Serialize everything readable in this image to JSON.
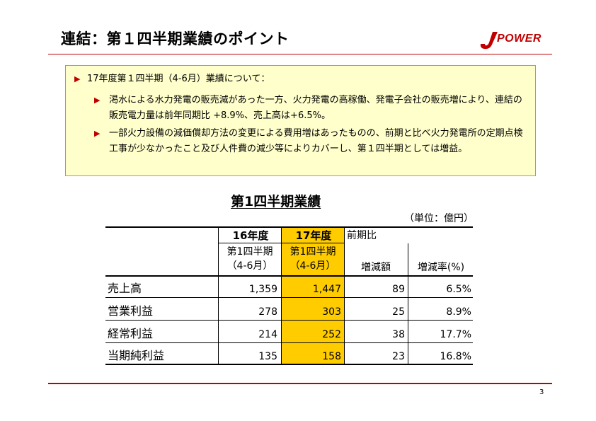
{
  "header": {
    "title": "連結：第１四半期業績のポイント",
    "logo_text": "POWER",
    "accent_color": "#c00000"
  },
  "summary": {
    "heading": "17年度第１四半期（4-6月）業績について：",
    "points": [
      "渇水による水力発電の販売減があった一方、火力発電の高稼働、発電子会社の販売増により、連結の販売電力量は前年同期比 +8.9%、売上高は+6.5%。",
      "一部火力設備の減価償却方法の変更による費用増はあったものの、前期と比べ火力発電所の定期点検工事が少なかったこと及び人件費の減少等によりカバーし、第１四半期としては増益。"
    ]
  },
  "table": {
    "title": "第1四半期業績",
    "unit": "（単位：億円）",
    "col_year_prev": "16年度",
    "col_year_curr": "17年度",
    "col_compare": "前期比",
    "col_q_prev": [
      "第1四半期",
      "（4-6月）"
    ],
    "col_q_curr": [
      "第1四半期",
      "（4-6月）"
    ],
    "col_diff": "増減額",
    "col_rate": "増減率(%)",
    "highlight_color": "#ffcc00",
    "rows": [
      {
        "label": "売上高",
        "prev": "1,359",
        "curr": "1,447",
        "diff": "89",
        "rate": "6.5%"
      },
      {
        "label": "営業利益",
        "prev": "278",
        "curr": "303",
        "diff": "25",
        "rate": "8.9%"
      },
      {
        "label": "経常利益",
        "prev": "214",
        "curr": "252",
        "diff": "38",
        "rate": "17.7%"
      },
      {
        "label": "当期純利益",
        "prev": "135",
        "curr": "158",
        "diff": "23",
        "rate": "16.8%"
      }
    ]
  },
  "footer": {
    "page_number": "3"
  }
}
